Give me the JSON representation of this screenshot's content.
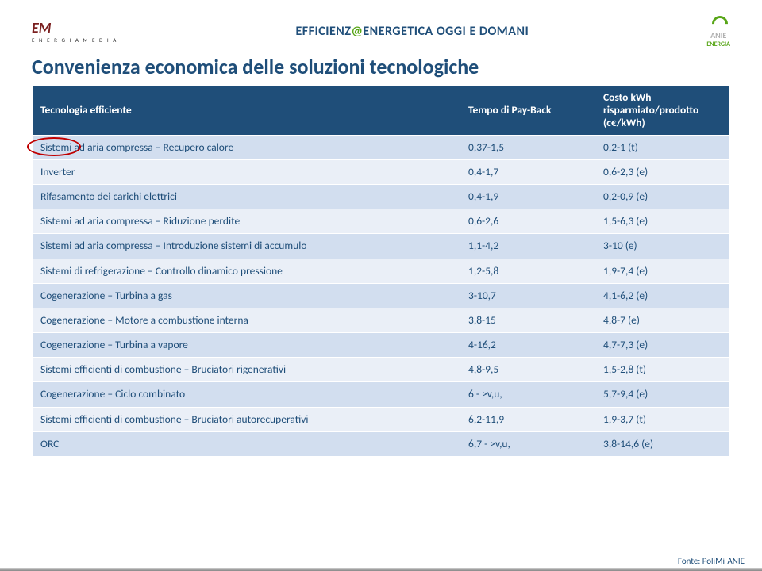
{
  "header": {
    "logo_left_main": "EM",
    "logo_left_sub": "E N E R G I A M E D I A",
    "banner_pre": "EFFICIENZ",
    "banner_at": "@",
    "banner_post": "ENERGETICA OGGI E DOMANI",
    "logo_right_top": "ANIE",
    "logo_right_bottom": "ENERGIA"
  },
  "title": "Convenienza economica delle soluzioni tecnologiche",
  "table": {
    "columns": [
      "Tecnologia efficiente",
      "Tempo di Pay-Back",
      "Costo kWh risparmiato/prodotto (c€/kWh)"
    ],
    "rows": [
      [
        "Sistemi ad aria compressa – Recupero calore",
        "0,37-1,5",
        "0,2-1 (t)"
      ],
      [
        "Inverter",
        "0,4-1,7",
        "0,6-2,3 (e)"
      ],
      [
        "Rifasamento dei carichi elettrici",
        "0,4-1,9",
        "0,2-0,9 (e)"
      ],
      [
        "Sistemi ad aria compressa – Riduzione perdite",
        "0,6-2,6",
        "1,5-6,3 (e)"
      ],
      [
        "Sistemi ad aria compressa – Introduzione sistemi di accumulo",
        "1,1-4,2",
        "3-10 (e)"
      ],
      [
        "Sistemi di refrigerazione – Controllo dinamico pressione",
        "1,2-5,8",
        "1,9-7,4 (e)"
      ],
      [
        "Cogenerazione – Turbina a gas",
        "3-10,7",
        "4,1-6,2 (e)"
      ],
      [
        "Cogenerazione – Motore a combustione interna",
        "3,8-15",
        "4,8-7 (e)"
      ],
      [
        "Cogenerazione – Turbina a vapore",
        "4-16,2",
        "4,7-7,3 (e)"
      ],
      [
        "Sistemi efficienti di combustione – Bruciatori rigenerativi",
        "4,8-9,5",
        "1,5-2,8 (t)"
      ],
      [
        "Cogenerazione – Ciclo combinato",
        "6 - >v,u,",
        "5,7-9,4 (e)"
      ],
      [
        "Sistemi efficienti di combustione – Bruciatori autorecuperativi",
        "6,2-11,9",
        "1,9-3,7 (t)"
      ],
      [
        "ORC",
        "6,7 - >v,u,",
        "3,8-14,6 (e)"
      ]
    ],
    "header_bg": "#1f4e79",
    "header_fg": "#ffffff",
    "row_odd_bg": "#d2deef",
    "row_even_bg": "#eaeff7",
    "cell_fg": "#1f4e79",
    "font_size_pt": 10
  },
  "annotation": {
    "circle_color": "#c00000",
    "circled_row_index": 1
  },
  "footer": "Fonte: PoliMi-ANIE"
}
